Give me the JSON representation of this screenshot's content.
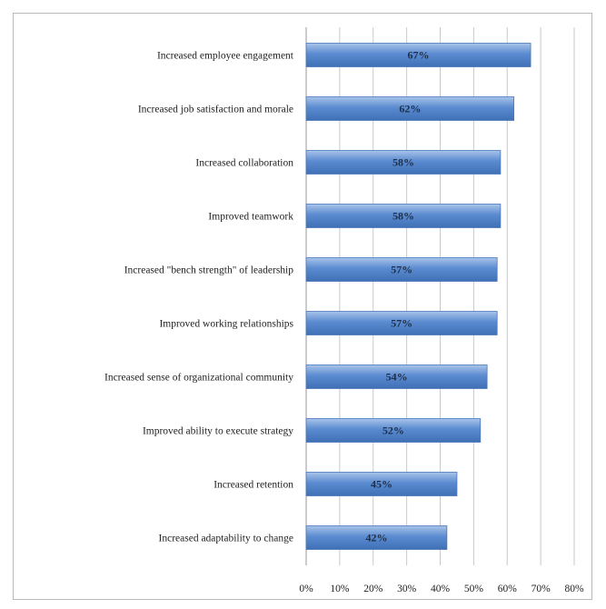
{
  "chart_data": {
    "type": "bar",
    "orientation": "horizontal",
    "categories": [
      "Increased employee engagement",
      "Increased job satisfaction and morale",
      "Increased collaboration",
      "Improved teamwork",
      "Increased \"bench strength\" of leadership",
      "Improved working relationships",
      "Increased sense of organizational community",
      "Improved ability to execute strategy",
      "Increased retention",
      "Increased adaptability to change"
    ],
    "values": [
      67,
      62,
      58,
      58,
      57,
      57,
      54,
      52,
      45,
      42
    ],
    "value_labels": [
      "67%",
      "62%",
      "58%",
      "58%",
      "57%",
      "57%",
      "54%",
      "52%",
      "45%",
      "42%"
    ],
    "xlim": [
      0,
      80
    ],
    "xticks": [
      0,
      10,
      20,
      30,
      40,
      50,
      60,
      70,
      80
    ],
    "xtick_labels": [
      "0%",
      "10%",
      "20%",
      "30%",
      "40%",
      "50%",
      "60%",
      "70%",
      "80%"
    ],
    "grid": true,
    "bar_color": "#5b8bd0",
    "bar_color_light": "#a9c4ea",
    "title": "",
    "xlabel": "",
    "ylabel": ""
  }
}
